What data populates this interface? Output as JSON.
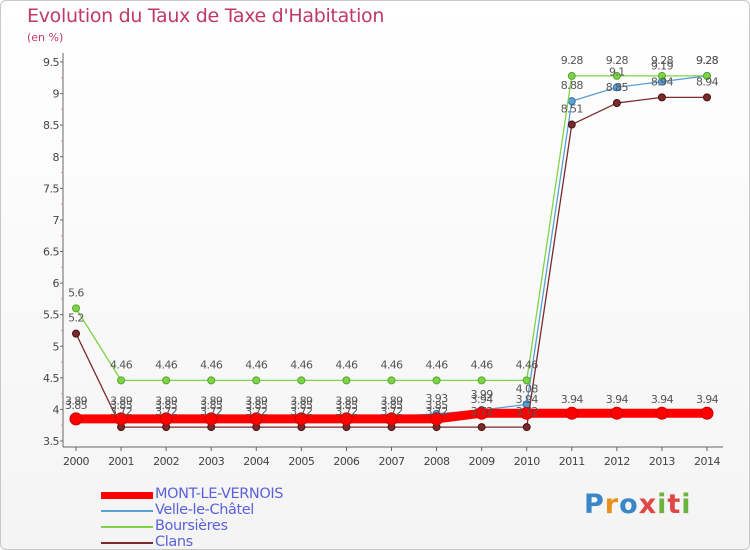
{
  "header": {
    "title": "Evolution du Taux de Taxe d'Habitation",
    "subtitle": "(en %)"
  },
  "logo": {
    "text": "Proxiti"
  },
  "chart_data": {
    "type": "line",
    "title": "Evolution du Taux de Taxe d'Habitation",
    "subtitle": "(en %)",
    "x": [
      2000,
      2001,
      2002,
      2003,
      2004,
      2005,
      2006,
      2007,
      2008,
      2009,
      2010,
      2011,
      2012,
      2013,
      2014
    ],
    "ylim": [
      3.5,
      9.5
    ],
    "yticks": [
      "3.5",
      "4",
      "4.5",
      "5",
      "5.5",
      "6",
      "6.5",
      "7",
      "7.5",
      "8",
      "8.5",
      "9",
      "9.5"
    ],
    "grid": false,
    "legend_position": "bottom-left",
    "series": [
      {
        "name": "MONT-LE-VERNOIS",
        "color": "#ff0000",
        "values": [
          3.85,
          3.85,
          3.85,
          3.85,
          3.85,
          3.85,
          3.85,
          3.85,
          3.85,
          3.94,
          3.94,
          3.94,
          3.94,
          3.94,
          3.94
        ],
        "labels": [
          "3.85",
          "3.85",
          "3.85",
          "3.85",
          "3.85",
          "3.85",
          "3.85",
          "3.85",
          "3.85",
          "3.94",
          "3.94",
          "3.94",
          "3.94",
          "3.94",
          "3.94"
        ]
      },
      {
        "name": "Velle-le-Châtel",
        "color": "#5a9fd6",
        "values": [
          3.89,
          3.89,
          3.89,
          3.89,
          3.89,
          3.89,
          3.89,
          3.89,
          3.93,
          3.99,
          4.08,
          8.88,
          9.1,
          9.19,
          9.28
        ],
        "labels": [
          "3.89",
          "3.89",
          "3.89",
          "3.89",
          "3.89",
          "3.89",
          "3.89",
          "3.89",
          "3.93",
          "3.99",
          "4.08",
          "8.88",
          "9.1",
          "9.19",
          "9.28"
        ]
      },
      {
        "name": "Boursières",
        "color": "#7ed348",
        "values": [
          5.6,
          4.46,
          4.46,
          4.46,
          4.46,
          4.46,
          4.46,
          4.46,
          4.46,
          4.46,
          4.46,
          9.28,
          9.28,
          9.28,
          9.28
        ],
        "labels": [
          "5.6",
          "4.46",
          "4.46",
          "4.46",
          "4.46",
          "4.46",
          "4.46",
          "4.46",
          "4.46",
          "4.46",
          "4.46",
          "9.28",
          "9.28",
          "9.28",
          "9.28"
        ]
      },
      {
        "name": "Clans",
        "color": "#7a2a2a",
        "values": [
          5.2,
          3.72,
          3.72,
          3.72,
          3.72,
          3.72,
          3.72,
          3.72,
          3.72,
          3.72,
          3.72,
          8.51,
          8.85,
          8.94,
          8.94
        ],
        "labels": [
          "5.2",
          "3.72",
          "3.72",
          "3.72",
          "3.72",
          "3.72",
          "3.72",
          "3.72",
          "3.72",
          "3.72",
          "3.72",
          "8.51",
          "8.85",
          "8.94",
          "8.94"
        ]
      }
    ]
  }
}
